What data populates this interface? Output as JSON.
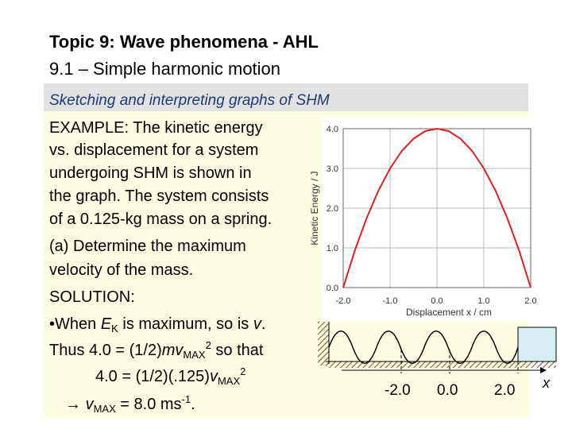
{
  "header": {
    "title": "Topic 9: Wave phenomena - AHL",
    "subtitle": "9.1 – Simple harmonic motion"
  },
  "section": "Sketching and interpreting graphs of SHM",
  "body": [
    [
      {
        "t": "EXAMPLE: The kinetic energy"
      }
    ],
    [
      {
        "t": "vs. displacement for a system"
      }
    ],
    [
      {
        "t": "undergoing SHM is shown in"
      }
    ],
    [
      {
        "t": "the graph. The system consists"
      }
    ],
    [
      {
        "t": "of a 0.125-kg mass on a spring."
      }
    ],
    [
      {
        "t": "(a) Determine the maximum"
      }
    ],
    [
      {
        "t": "velocity of the mass."
      }
    ],
    [
      {
        "t": "SOLUTION:"
      }
    ],
    [
      {
        "t": "•When "
      },
      {
        "t": "E",
        "s": "i"
      },
      {
        "t": "K",
        "s": "sub"
      },
      {
        "t": " is maximum, so is "
      },
      {
        "t": "v",
        "s": "i"
      },
      {
        "t": "."
      }
    ],
    [
      {
        "t": "Thus 4.0 = (1/2)"
      },
      {
        "t": "mv",
        "s": "i"
      },
      {
        "t": "MAX",
        "s": "sub"
      },
      {
        "t": "2",
        "s": "sup"
      },
      {
        "t": " so that"
      }
    ],
    [
      {
        "t": "4.0 = (1/2)(.125)"
      },
      {
        "t": "v",
        "s": "i"
      },
      {
        "t": "MAX",
        "s": "sub"
      },
      {
        "t": "2",
        "s": "sup"
      }
    ],
    [
      {
        "t": "→ "
      },
      {
        "t": "v",
        "s": "i"
      },
      {
        "t": "MAX",
        "s": "sub"
      },
      {
        "t": " = 8.0 ms"
      },
      {
        "t": "-1",
        "s": "sup"
      },
      {
        "t": "."
      }
    ]
  ],
  "chart_data": {
    "type": "line",
    "xlabel": "Displacement x / cm",
    "ylabel": "Kinetic Energy / J",
    "x": [
      -2.0,
      -1.75,
      -1.5,
      -1.25,
      -1.0,
      -0.75,
      -0.5,
      -0.25,
      0.0,
      0.25,
      0.5,
      0.75,
      1.0,
      1.25,
      1.5,
      1.75,
      2.0
    ],
    "series": [
      {
        "name": "Kinetic energy",
        "color": "#e02020",
        "values": [
          0.0,
          0.94,
          1.75,
          2.44,
          3.0,
          3.44,
          3.75,
          3.94,
          4.0,
          3.94,
          3.75,
          3.44,
          3.0,
          2.44,
          1.75,
          0.94,
          0.0
        ]
      }
    ],
    "xlim": [
      -2.0,
      2.0
    ],
    "ylim": [
      0.0,
      4.0
    ],
    "xticks": [
      {
        "value": -2,
        "label": "-2.0"
      },
      {
        "value": -1,
        "label": "-1.0"
      },
      {
        "value": 0,
        "label": "0.0"
      },
      {
        "value": 1,
        "label": "1.0"
      },
      {
        "value": 2,
        "label": "2.0"
      }
    ],
    "yticks": [
      {
        "value": 0,
        "label": "0.0"
      },
      {
        "value": 1,
        "label": "1.0"
      },
      {
        "value": 2,
        "label": "2.0"
      },
      {
        "value": 3,
        "label": "3.0"
      },
      {
        "value": 4,
        "label": "4.0"
      }
    ],
    "grid": true
  },
  "diagram": {
    "labels": [
      "-2.0",
      "0.0",
      "2.0"
    ],
    "axis": "x"
  }
}
